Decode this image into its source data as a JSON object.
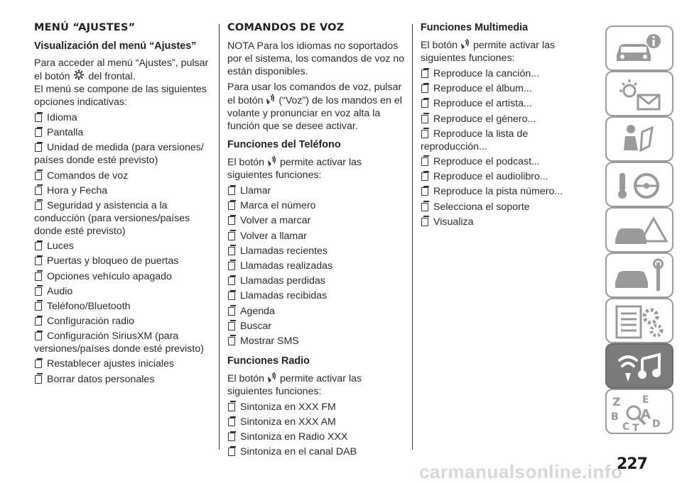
{
  "col1": {
    "title": "MENÚ “AJUSTES”",
    "subtitle": "Visualización del menú “Ajustes”",
    "intro_a": "Para acceder al menú “Ajustes”, pulsar el botón",
    "intro_b": "del frontal.",
    "intro_c": "El menú se compone de las siguientes opciones indicativas:",
    "items": [
      "Idioma",
      "Pantalla",
      "Unidad de medida (para versiones/ países donde esté previsto)",
      "Comandos de voz",
      "Hora y Fecha",
      "Seguridad y asistencia a la conducción (para versiones/países donde esté previsto)",
      "Luces",
      "Puertas y bloqueo de puertas",
      "Opciones vehículo apagado",
      "Audio",
      "Teléfono/Bluetooth",
      "Configuración radio",
      "Configuración SiriusXM (para versiones/países donde esté previsto)",
      "Restablecer ajustes iniciales",
      "Borrar datos personales"
    ]
  },
  "col2": {
    "title": "COMANDOS DE VOZ",
    "nota": "NOTA Para los idiomas no soportados por el sistema, los comandos de voz no están disponibles.",
    "usage_a": "Para usar los comandos de voz, pulsar el botón",
    "usage_b": "(“Voz”) de los mandos en el volante y pronunciar en voz alta la función que se desee activar.",
    "phone_title": "Funciones del Teléfono",
    "phone_a": "El botón",
    "phone_b": "permite activar las siguientes funciones:",
    "phone_items": [
      "Llamar",
      "Marca el número",
      "Volver a marcar",
      "Volver a llamar",
      "Llamadas recientes",
      "Llamadas realizadas",
      "Llamadas perdidas",
      "Llamadas recibidas",
      "Agenda",
      "Buscar",
      "Mostrar SMS"
    ],
    "radio_title": "Funciones Radio",
    "radio_a": "El botón",
    "radio_b": "permite activar las siguientes funciones:",
    "radio_items": [
      "Sintoniza en XXX FM",
      "Sintoniza en XXX AM",
      "Sintoniza en Radio XXX",
      "Sintoniza en el canal DAB"
    ]
  },
  "col3": {
    "title": "Funciones Multimedia",
    "intro_a": "El botón",
    "intro_b": "permite activar las siguientes funciones:",
    "items": [
      "Reproduce la canción...",
      "Reproduce el álbum...",
      "Reproduce el artista...",
      "Reproduce el género...",
      "Reproduce la lista de reproducción...",
      "Reproduce el podcast...",
      "Reproduce el audiolibro...",
      "Reproduce la pista número...",
      "Selecciona el soporte",
      "Visualiza"
    ]
  },
  "tabs": [
    {
      "icon": "car-info-icon"
    },
    {
      "icon": "warning-light-message-icon"
    },
    {
      "icon": "airbag-safety-icon"
    },
    {
      "icon": "key-steering-wheel-icon"
    },
    {
      "icon": "car-breakdown-icon"
    },
    {
      "icon": "car-maintenance-icon"
    },
    {
      "icon": "technical-data-gears-icon"
    },
    {
      "icon": "multimedia-icon",
      "active": true
    },
    {
      "icon": "alphabetical-index-icon"
    }
  ],
  "page_number": "227",
  "watermark": "carmanualsonline.info"
}
